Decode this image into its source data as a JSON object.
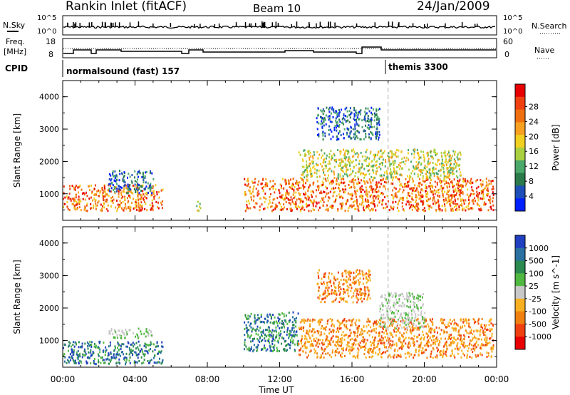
{
  "header": {
    "station": "Rankin Inlet (fitACF)",
    "beam": "Beam 10",
    "date": "24/Jan/2009"
  },
  "status_panels": {
    "nsky_label": "N.Sky",
    "nsky_ticks": [
      "10^5",
      "10^0"
    ],
    "nsearch_ticks": [
      "10^5",
      "10^0"
    ],
    "nsearch_label": "N.Search",
    "freq_label": "Freq.",
    "freq_unit": "[MHz]",
    "freq_ticks": [
      "18",
      "8"
    ],
    "nave_ticks": [
      "60",
      "0"
    ],
    "nave_label": "Nave",
    "cpid_label": "CPID",
    "cpid_1": "normalsound (fast) 157",
    "cpid_2": "themis 3300"
  },
  "chart_data": [
    {
      "type": "heatmap",
      "parameter": "Power",
      "ylabel": "Slant Range [km]",
      "ylim": [
        180,
        4500
      ],
      "yticks": [
        "1000",
        "2000",
        "3000",
        "4000"
      ],
      "colorbar_label": "Power [dB]",
      "colorbar_ticks": [
        "4",
        "8",
        "12",
        "16",
        "20",
        "24",
        "28"
      ],
      "colorbar_colors": [
        "#0020ff",
        "#1e4fb8",
        "#2a7a4a",
        "#4aa86a",
        "#a8d040",
        "#f0d020",
        "#f8a020",
        "#f07010",
        "#f04010",
        "#e80000"
      ],
      "echo_regions": [
        {
          "t": [
            0.0,
            5.5
          ],
          "r": [
            500,
            1300
          ],
          "level": "high"
        },
        {
          "t": [
            2.5,
            5.0
          ],
          "r": [
            1050,
            1750
          ],
          "level": "low"
        },
        {
          "t": [
            7.3,
            7.6
          ],
          "r": [
            500,
            800
          ],
          "level": "mid"
        },
        {
          "t": [
            10.0,
            23.8
          ],
          "r": [
            500,
            1500
          ],
          "level": "high"
        },
        {
          "t": [
            13.0,
            22.0
          ],
          "r": [
            1500,
            2400
          ],
          "level": "mid"
        },
        {
          "t": [
            14.0,
            17.5
          ],
          "r": [
            2700,
            3700
          ],
          "level": "low"
        }
      ]
    },
    {
      "type": "heatmap",
      "parameter": "Velocity",
      "ylabel": "Slant Range [km]",
      "ylim": [
        180,
        4500
      ],
      "yticks": [
        "1000",
        "2000",
        "3000",
        "4000"
      ],
      "colorbar_label": "Velocity [m s^-1]",
      "colorbar_ticks": [
        "1000",
        "500",
        "100",
        "25",
        "-25",
        "-100",
        "-500",
        "-1000"
      ],
      "colorbar_colors": [
        "#2040c0",
        "#2a70a0",
        "#2a8a50",
        "#50b840",
        "#c8c8c8",
        "#f8b020",
        "#f08010",
        "#f04010",
        "#e80000"
      ],
      "echo_regions": [
        {
          "t": [
            0.0,
            5.5
          ],
          "r": [
            300,
            1000
          ],
          "level": "toward"
        },
        {
          "t": [
            2.5,
            5.0
          ],
          "r": [
            1100,
            1400
          ],
          "level": "ground"
        },
        {
          "t": [
            10.0,
            13.0
          ],
          "r": [
            700,
            1900
          ],
          "level": "toward"
        },
        {
          "t": [
            13.0,
            23.8
          ],
          "r": [
            500,
            1700
          ],
          "level": "away"
        },
        {
          "t": [
            17.5,
            20.0
          ],
          "r": [
            1400,
            2500
          ],
          "level": "ground"
        },
        {
          "t": [
            14.0,
            17.0
          ],
          "r": [
            2200,
            3200
          ],
          "level": "away"
        }
      ]
    }
  ],
  "x_axis": {
    "ticks": [
      "00:00",
      "04:00",
      "08:00",
      "12:00",
      "16:00",
      "20:00",
      "00:00"
    ],
    "label": "Time UT",
    "xlim_hours": [
      0,
      24
    ],
    "marker_hour": 18.0
  }
}
